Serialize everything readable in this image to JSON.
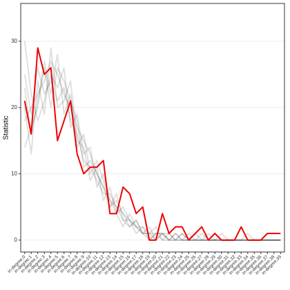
{
  "chart_data": {
    "type": "line",
    "y_label": "Statistic",
    "categories": [
      "in-degree.0",
      "in-degree.1",
      "in-degree.2",
      "in-degree.3",
      "in-degree.4",
      "in-degree.5",
      "in-degree.6",
      "in-degree.7",
      "in-degree.8",
      "in-degree.9",
      "in-degree.10",
      "in-degree.11",
      "in-degree.12",
      "in-degree.13",
      "in-degree.14",
      "in-degree.15",
      "in-degree.16",
      "in-degree.17",
      "in-degree.18",
      "in-degree.19",
      "in-degree.20",
      "in-degree.21",
      "in-degree.22",
      "in-degree.23",
      "in-degree.24",
      "in-degree.25",
      "in-degree.26",
      "in-degree.27",
      "in-degree.28",
      "in-degree.29",
      "in-degree.30",
      "in-degree.31",
      "in-degree.32",
      "in-degree.33",
      "in-degree.34",
      "in-degree.35",
      "in-degree.36",
      "in-degree.37",
      "in-degree.38",
      "in-degree.39"
    ],
    "values": [
      21,
      16,
      29,
      25,
      26,
      15,
      18,
      21,
      13,
      10,
      11,
      11,
      12,
      4,
      4,
      8,
      7,
      4,
      5,
      0,
      0,
      4,
      1,
      2,
      2,
      0,
      1,
      2,
      0,
      1,
      0,
      0,
      0,
      2,
      0,
      0,
      0,
      1,
      1,
      1
    ],
    "color": "#ee0000",
    "simulated_color": "#000000",
    "simulated": [
      [
        18,
        20,
        22,
        24,
        27,
        25,
        22,
        20,
        17,
        15,
        13,
        10,
        8,
        6,
        5,
        4,
        3,
        2,
        2,
        1,
        1,
        1,
        0,
        1,
        0,
        0,
        1,
        0,
        0,
        0,
        0,
        0,
        0,
        0,
        0,
        0,
        0,
        0,
        0,
        0
      ],
      [
        25,
        19,
        26,
        22,
        24,
        21,
        23,
        18,
        16,
        12,
        11,
        9,
        7,
        7,
        5,
        3,
        3,
        2,
        1,
        2,
        0,
        1,
        1,
        0,
        1,
        0,
        0,
        0,
        1,
        0,
        0,
        0,
        0,
        0,
        0,
        0,
        0,
        0,
        0,
        0
      ],
      [
        14,
        17,
        20,
        27,
        22,
        28,
        19,
        22,
        14,
        16,
        10,
        12,
        9,
        5,
        6,
        4,
        2,
        3,
        1,
        1,
        2,
        0,
        0,
        1,
        0,
        1,
        0,
        0,
        0,
        0,
        1,
        0,
        0,
        0,
        0,
        0,
        0,
        0,
        0,
        0
      ],
      [
        30,
        22,
        18,
        21,
        25,
        23,
        26,
        17,
        19,
        13,
        14,
        8,
        10,
        6,
        4,
        5,
        3,
        1,
        2,
        0,
        1,
        0,
        1,
        0,
        0,
        0,
        0,
        1,
        0,
        0,
        0,
        0,
        0,
        0,
        1,
        0,
        0,
        0,
        0,
        0
      ],
      [
        20,
        13,
        24,
        19,
        29,
        20,
        21,
        24,
        15,
        14,
        9,
        11,
        6,
        8,
        4,
        2,
        4,
        2,
        1,
        1,
        0,
        1,
        0,
        0,
        0,
        0,
        0,
        0,
        0,
        0,
        0,
        0,
        0,
        0,
        0,
        0,
        0,
        0,
        0,
        0
      ],
      [
        23,
        16,
        21,
        26,
        20,
        26,
        24,
        21,
        18,
        11,
        12,
        10,
        8,
        5,
        7,
        3,
        2,
        3,
        1,
        0,
        1,
        1,
        0,
        0,
        1,
        0,
        0,
        0,
        0,
        0,
        0,
        0,
        0,
        0,
        0,
        0,
        0,
        0,
        0,
        0
      ]
    ],
    "ylim": [
      -1.8,
      35.7
    ],
    "yticks": [
      0,
      10,
      20,
      30
    ],
    "grid": true
  }
}
